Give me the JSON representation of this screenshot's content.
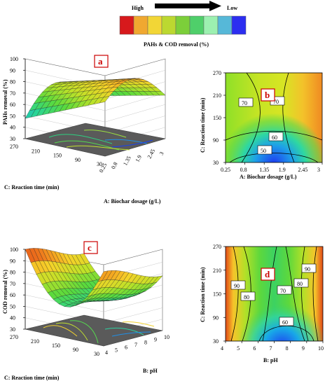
{
  "legend": {
    "high_label": "High",
    "low_label": "Low",
    "caption": "PAHs & COD removal (%)",
    "colors": [
      "#d7191c",
      "#f0a830",
      "#f2d636",
      "#bcd830",
      "#7ccf3a",
      "#4fcf6a",
      "#9cf0b0",
      "#56b8d8",
      "#2c2ef0"
    ]
  },
  "chart_data": [
    {
      "id": "a",
      "type": "surface",
      "panel_label": "a",
      "zlabel": "PAHs  removal (%)",
      "xlabel": "A: Biochar  dosage (g/L)",
      "ylabel": "C: Reaction time (min)",
      "z_ticks": [
        "30",
        "40",
        "50",
        "60",
        "70",
        "80",
        "90",
        "100"
      ],
      "x_ticks": [
        "0.25",
        "0.8",
        "1.35",
        "1.9",
        "2.45",
        "3"
      ],
      "y_ticks": [
        "270",
        "210",
        "150",
        "90",
        "30"
      ],
      "zlim": [
        30,
        100
      ]
    },
    {
      "id": "b",
      "type": "contour",
      "panel_label": "b",
      "xlabel": "A: Biochar  dosage (g/L)",
      "ylabel": "C: Reaction time (min)",
      "x_ticks": [
        "0.25",
        "0.8",
        "1.35",
        "1.9",
        "2.45",
        "3"
      ],
      "y_ticks": [
        "270",
        "210",
        "150",
        "90",
        "30"
      ],
      "contour_labels": [
        "70",
        "70",
        "60",
        "50"
      ]
    },
    {
      "id": "c",
      "type": "surface",
      "panel_label": "c",
      "zlabel": "COD  removal (%)",
      "xlabel": "B: pH",
      "ylabel": "C: Reaction time (min)",
      "z_ticks": [
        "30",
        "40",
        "50",
        "60",
        "70",
        "80",
        "90",
        "100"
      ],
      "x_ticks": [
        "4",
        "5",
        "6",
        "7",
        "8",
        "9",
        "10"
      ],
      "y_ticks": [
        "270",
        "210",
        "150",
        "90",
        "30"
      ],
      "zlim": [
        30,
        100
      ]
    },
    {
      "id": "d",
      "type": "contour",
      "panel_label": "d",
      "xlabel": "B: pH",
      "ylabel": "C: Reaction time (min)",
      "x_ticks": [
        "4",
        "5",
        "6",
        "7",
        "8",
        "9",
        "10"
      ],
      "y_ticks": [
        "270",
        "210",
        "150",
        "90",
        "30"
      ],
      "contour_labels": [
        "90",
        "80",
        "70",
        "80",
        "90",
        "60"
      ]
    }
  ]
}
